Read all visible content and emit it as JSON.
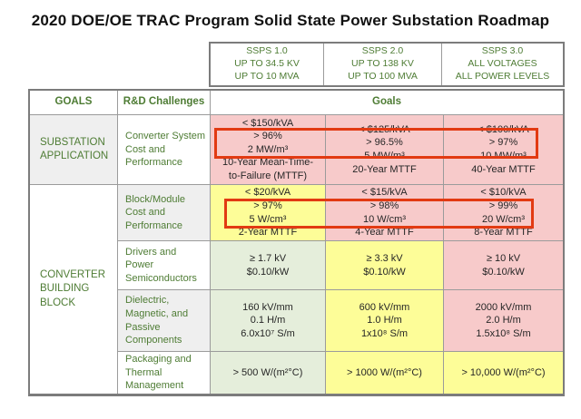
{
  "title": "2020 DOE/OE TRAC Program Solid State Power Substation Roadmap",
  "colors": {
    "pink": "#f7caca",
    "yellow": "#fdfd98",
    "green": "#e5eedb",
    "gray": "#efefef",
    "green-text": "#4e7c34",
    "border": "#9b9b9b",
    "border-dark": "#7c7c7c",
    "red": "#e23a12",
    "text": "#262626"
  },
  "ssps_header": {
    "columns": [
      {
        "text": "SSPS 1.0\nUP TO 34.5 KV\nUP TO 10 MVA"
      },
      {
        "text": "SSPS 2.0\nUP TO 138 KV\nUP TO 100 MVA"
      },
      {
        "text": "SSPS 3.0\nALL VOLTAGES\nALL POWER LEVELS"
      }
    ]
  },
  "table": {
    "corner_header": "GOALS",
    "challenges_header": "R&D Challenges",
    "goals_header": "Goals",
    "goal_groups": [
      {
        "label": "SUBSTATION\nAPPLICATION"
      },
      {
        "label": "CONVERTER\nBUILDING\nBLOCK"
      }
    ],
    "rows": [
      {
        "challenge": "Converter System\nCost and\nPerformance",
        "cells": [
          {
            "text": "< $150/kVA\n> 96%\n2 MW/m³\n10-Year Mean-Time-\nto-Failure (MTTF)"
          },
          {
            "text": "< $125/kVA\n> 96.5%\n5 MW/m³\n20-Year MTTF"
          },
          {
            "text": "< $100/kVA\n> 97%\n10 MW/m³\n40-Year MTTF"
          }
        ]
      },
      {
        "challenge": "Block/Module\nCost and\nPerformance",
        "cells": [
          {
            "text": "< $20/kVA\n> 97%\n5 W/cm³\n2-Year MTTF"
          },
          {
            "text": "< $15/kVA\n> 98%\n10 W/cm³\n4-Year MTTF"
          },
          {
            "text": "< $10/kVA\n> 99%\n20 W/cm³\n8-Year MTTF"
          }
        ]
      },
      {
        "challenge": "Drivers and\nPower\nSemiconductors",
        "cells": [
          {
            "text": "≥ 1.7 kV\n$0.10/kW"
          },
          {
            "text": "≥ 3.3 kV\n$0.10/kW"
          },
          {
            "text": "≥ 10 kV\n$0.10/kW"
          }
        ]
      },
      {
        "challenge": "Dielectric,\nMagnetic, and\nPassive\nComponents",
        "cells": [
          {
            "text": "160 kV/mm\n0.1 H/m\n6.0x10⁷ S/m"
          },
          {
            "text": "600 kV/mm\n1.0 H/m\n1x10⁸ S/m"
          },
          {
            "text": "2000 kV/mm\n2.0 H/m\n1.5x10⁸ S/m"
          }
        ]
      },
      {
        "challenge": "Packaging and\nThermal\nManagement",
        "cells": [
          {
            "text": "> 500 W/(m²°C)"
          },
          {
            "text": "> 1000 W/(m²°C)"
          },
          {
            "text": "> 10,000 W/(m²°C)"
          }
        ]
      }
    ]
  }
}
